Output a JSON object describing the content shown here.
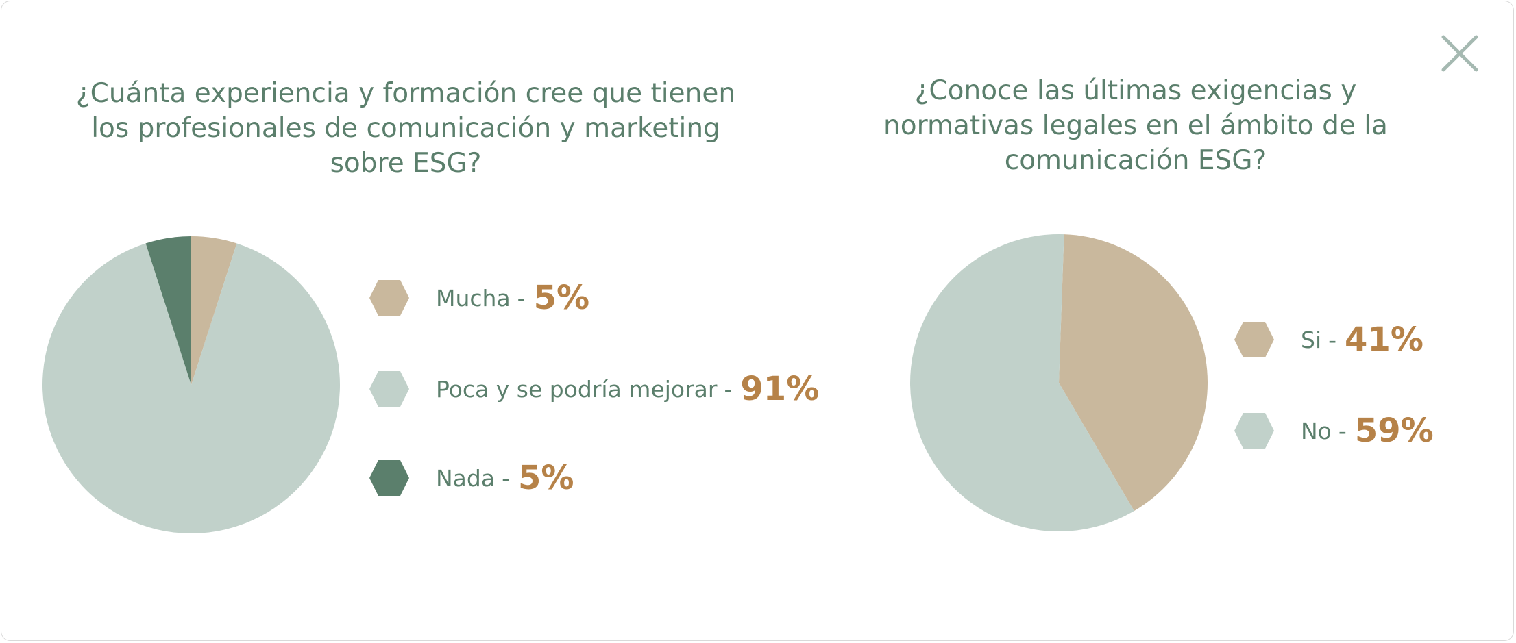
{
  "colors": {
    "tan": "#c9b89d",
    "light_sage": "#c1d1ca",
    "dark_green": "#5b7f6c",
    "text_green": "#5b7f6c",
    "accent_brown": "#b68248",
    "close_icon": "#a5b9b1"
  },
  "close_icon": "close-icon",
  "chart_data": [
    {
      "type": "pie",
      "title": "¿Cuánta experiencia y formación cree que tienen los profesionales de comunicación y marketing sobre ESG?",
      "categories": [
        "Mucha",
        "Poca y se podría mejorar",
        "Nada"
      ],
      "values": [
        5,
        91,
        5
      ],
      "value_labels": [
        "5%",
        "91%",
        "5%"
      ],
      "colors": [
        "#c9b89d",
        "#c1d1ca",
        "#5b7f6c"
      ],
      "legend_position": "right"
    },
    {
      "type": "pie",
      "title": "¿Conoce las últimas exigencias y normativas legales en el ámbito de la comunicación ESG?",
      "categories": [
        "Si",
        "No"
      ],
      "values": [
        41,
        59
      ],
      "value_labels": [
        "41%",
        "59%"
      ],
      "colors": [
        "#c9b89d",
        "#c1d1ca"
      ],
      "legend_position": "right"
    }
  ]
}
